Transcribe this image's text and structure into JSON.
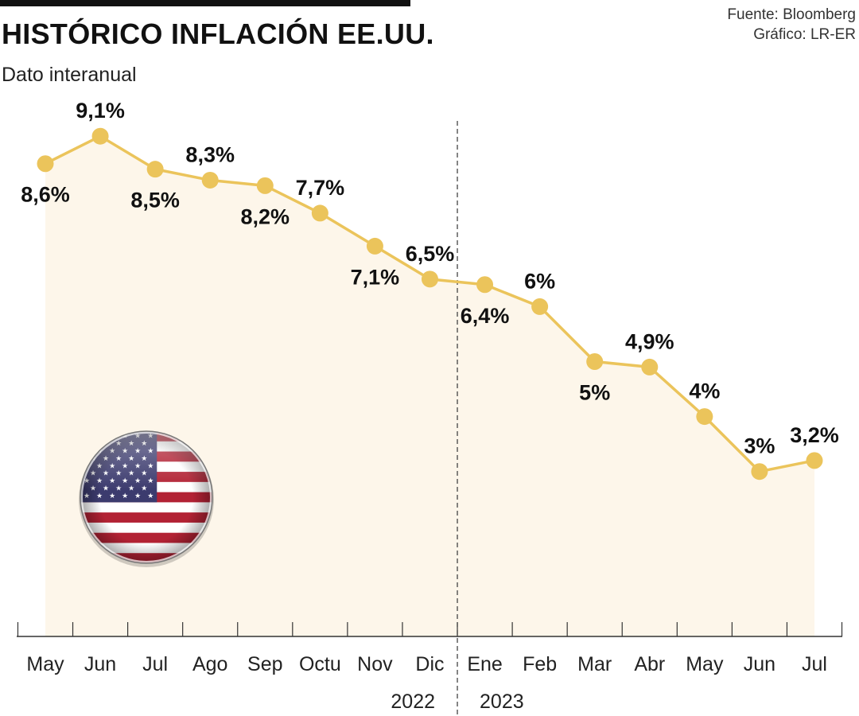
{
  "header": {
    "title": "HISTÓRICO INFLACIÓN EE.UU.",
    "subtitle": "Dato interanual",
    "source": "Fuente: Bloomberg",
    "credit": "Gráfico: LR-ER"
  },
  "colors": {
    "line": "#EBC45B",
    "area": "#FDF6EA",
    "text": "#111111",
    "flag_red": "#B22234",
    "flag_blue": "#3C3B6E"
  },
  "icons": [
    "us-flag-icon"
  ],
  "chart_data": {
    "type": "line",
    "categories": [
      "May",
      "Jun",
      "Jul",
      "Ago",
      "Sep",
      "Octu",
      "Nov",
      "Dic",
      "Ene",
      "Feb",
      "Mar",
      "Abr",
      "May",
      "Jun",
      "Jul"
    ],
    "values": [
      8.6,
      9.1,
      8.5,
      8.3,
      8.2,
      7.7,
      7.1,
      6.5,
      6.4,
      6.0,
      5.0,
      4.9,
      4.0,
      3.0,
      3.2
    ],
    "data_labels": [
      "8,6%",
      "9,1%",
      "8,5%",
      "8,3%",
      "8,2%",
      "7,7%",
      "7,1%",
      "6,5%",
      "6,4%",
      "6%",
      "5%",
      "4,9%",
      "4%",
      "3%",
      "3,2%"
    ],
    "label_position": [
      "below",
      "above",
      "below",
      "above",
      "below",
      "above",
      "below",
      "above",
      "below",
      "above",
      "below",
      "above",
      "above",
      "above",
      "above"
    ],
    "year_labels": [
      "2022",
      "2023"
    ],
    "year_divider_between": [
      7,
      8
    ],
    "area_fill": true,
    "grid": false,
    "title": "HISTÓRICO INFLACIÓN EE.UU.",
    "ylabel": "Dato interanual",
    "xlabel": ""
  }
}
